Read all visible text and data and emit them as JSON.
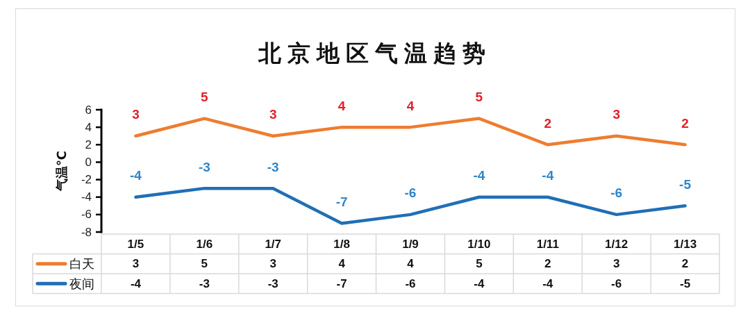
{
  "chart_data": {
    "type": "line",
    "title": "北京地区气温趋势",
    "ylabel": "气温℃",
    "categories": [
      "1/5",
      "1/6",
      "1/7",
      "1/8",
      "1/9",
      "1/10",
      "1/11",
      "1/12",
      "1/13"
    ],
    "series": [
      {
        "name": "白天",
        "color": "#ed7d31",
        "values": [
          3,
          5,
          3,
          4,
          4,
          5,
          2,
          3,
          2
        ]
      },
      {
        "name": "夜间",
        "color": "#1f6fb5",
        "values": [
          -4,
          -3,
          -3,
          -7,
          -6,
          -4,
          -4,
          -6,
          -5
        ]
      }
    ],
    "ylim": [
      -8,
      6
    ],
    "yticks": [
      -8,
      -6,
      -4,
      -2,
      0,
      2,
      4,
      6
    ],
    "annotations": [
      {
        "text": "3",
        "x": "1/5",
        "y": 3
      },
      {
        "text": "5",
        "x": "1/6",
        "y": 5
      },
      {
        "text": "3",
        "x": "1/7",
        "y": 3
      },
      {
        "text": "4",
        "x": "1/8",
        "y": 4
      },
      {
        "text": "4",
        "x": "1/9",
        "y": 4
      },
      {
        "text": "5",
        "x": "1/10",
        "y": 5
      },
      {
        "text": "2",
        "x": "1/11",
        "y": 2
      },
      {
        "text": "3",
        "x": "1/12",
        "y": 3
      },
      {
        "text": "2",
        "x": "1/13",
        "y": 2
      },
      {
        "text": "-4",
        "x": "1/5",
        "y": -4
      },
      {
        "text": "-3",
        "x": "1/6",
        "y": -3
      },
      {
        "text": "-3",
        "x": "1/7",
        "y": -3
      },
      {
        "text": "-7",
        "x": "1/8",
        "y": -7
      },
      {
        "text": "-6",
        "x": "1/9",
        "y": -6
      },
      {
        "text": "-4",
        "x": "1/10",
        "y": -4
      },
      {
        "text": "-4",
        "x": "1/11",
        "y": -4
      },
      {
        "text": "-6",
        "x": "1/12",
        "y": -6
      },
      {
        "text": "-5",
        "x": "1/13",
        "y": -5
      }
    ],
    "data_labels": true,
    "legend": "bottom left",
    "marker": "none",
    "line_style": "solid"
  }
}
